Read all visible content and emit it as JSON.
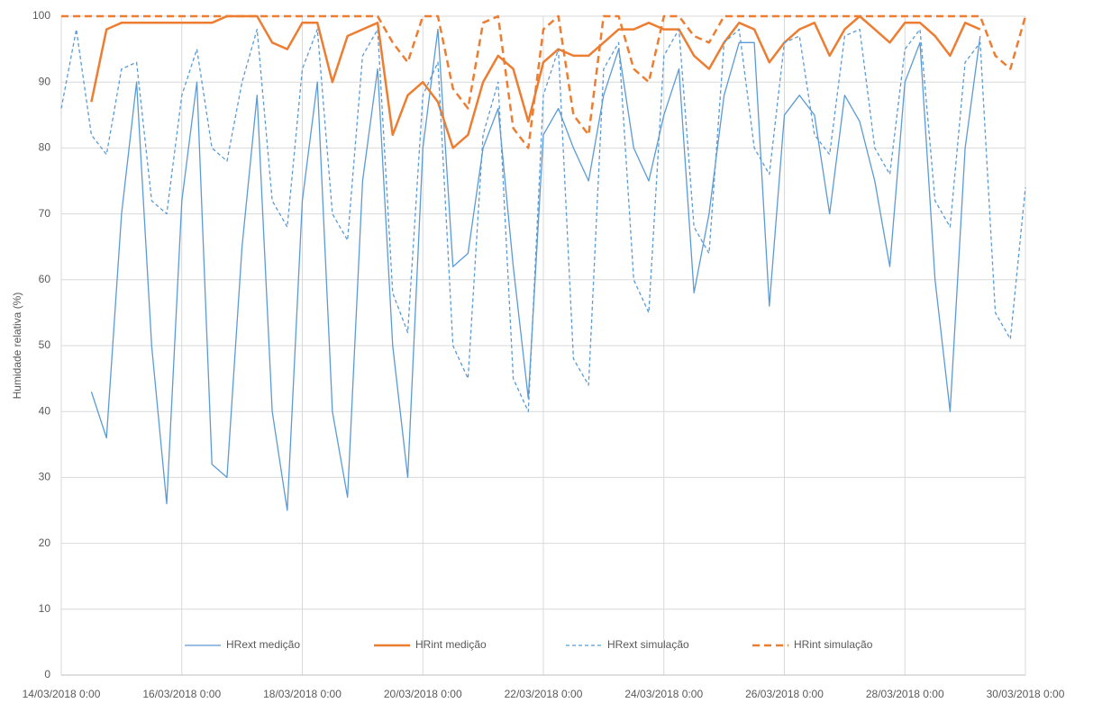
{
  "chart_data": {
    "type": "line",
    "y_label": "Humidade relativa (%)",
    "x": [
      "14/03/2018 0:00",
      "14/03/2018 6:00",
      "14/03/2018 12:00",
      "14/03/2018 18:00",
      "15/03/2018 0:00",
      "15/03/2018 6:00",
      "15/03/2018 12:00",
      "15/03/2018 18:00",
      "16/03/2018 0:00",
      "16/03/2018 6:00",
      "16/03/2018 12:00",
      "16/03/2018 18:00",
      "17/03/2018 0:00",
      "17/03/2018 6:00",
      "17/03/2018 12:00",
      "17/03/2018 18:00",
      "18/03/2018 0:00",
      "18/03/2018 6:00",
      "18/03/2018 12:00",
      "18/03/2018 18:00",
      "19/03/2018 0:00",
      "19/03/2018 6:00",
      "19/03/2018 12:00",
      "19/03/2018 18:00",
      "20/03/2018 0:00",
      "20/03/2018 6:00",
      "20/03/2018 12:00",
      "20/03/2018 18:00",
      "21/03/2018 0:00",
      "21/03/2018 6:00",
      "21/03/2018 12:00",
      "21/03/2018 18:00",
      "22/03/2018 0:00",
      "22/03/2018 6:00",
      "22/03/2018 12:00",
      "22/03/2018 18:00",
      "23/03/2018 0:00",
      "23/03/2018 6:00",
      "23/03/2018 12:00",
      "23/03/2018 18:00",
      "24/03/2018 0:00",
      "24/03/2018 6:00",
      "24/03/2018 12:00",
      "24/03/2018 18:00",
      "25/03/2018 0:00",
      "25/03/2018 6:00",
      "25/03/2018 12:00",
      "25/03/2018 18:00",
      "26/03/2018 0:00",
      "26/03/2018 6:00",
      "26/03/2018 12:00",
      "26/03/2018 18:00",
      "27/03/2018 0:00",
      "27/03/2018 6:00",
      "27/03/2018 12:00",
      "27/03/2018 18:00",
      "28/03/2018 0:00",
      "28/03/2018 6:00",
      "28/03/2018 12:00",
      "28/03/2018 18:00",
      "29/03/2018 0:00",
      "29/03/2018 6:00",
      "29/03/2018 12:00",
      "29/03/2018 18:00",
      "30/03/2018 0:00"
    ],
    "series": [
      {
        "name": "HRext medição",
        "color": "#5b9bd5",
        "linestyle": "solid",
        "width": 1.3,
        "values": [
          null,
          null,
          43,
          36,
          70,
          90,
          50,
          26,
          72,
          90,
          32,
          30,
          65,
          88,
          40,
          25,
          72,
          90,
          40,
          27,
          75,
          92,
          50,
          30,
          80,
          98,
          62,
          64,
          80,
          86,
          62,
          42,
          82,
          86,
          80,
          75,
          88,
          95,
          80,
          75,
          85,
          92,
          58,
          70,
          88,
          96,
          96,
          56,
          85,
          88,
          85,
          70,
          88,
          84,
          75,
          62,
          90,
          96,
          60,
          40,
          80,
          97,
          null,
          null,
          null
        ]
      },
      {
        "name": "HRint medição",
        "color": "#ed7d31",
        "linestyle": "solid",
        "width": 2.5,
        "values": [
          null,
          null,
          87,
          98,
          99,
          99,
          99,
          99,
          99,
          99,
          99,
          100,
          100,
          100,
          96,
          95,
          99,
          99,
          90,
          97,
          98,
          99,
          82,
          88,
          90,
          87,
          80,
          82,
          90,
          94,
          92,
          84,
          93,
          95,
          94,
          94,
          96,
          98,
          98,
          99,
          98,
          98,
          94,
          92,
          96,
          99,
          98,
          93,
          96,
          98,
          99,
          94,
          98,
          100,
          98,
          96,
          99,
          99,
          97,
          94,
          99,
          98,
          null,
          null,
          null
        ]
      },
      {
        "name": "HRext simulação",
        "color": "#5b9bd5",
        "linestyle": "dashed",
        "width": 1.3,
        "values": [
          86,
          98,
          82,
          79,
          92,
          93,
          72,
          70,
          88,
          95,
          80,
          78,
          90,
          98,
          72,
          68,
          92,
          98,
          70,
          66,
          94,
          98,
          58,
          52,
          88,
          93,
          50,
          45,
          82,
          90,
          45,
          40,
          88,
          95,
          48,
          44,
          92,
          96,
          60,
          55,
          94,
          98,
          68,
          64,
          96,
          98,
          80,
          76,
          96,
          97,
          82,
          79,
          97,
          98,
          80,
          76,
          95,
          98,
          72,
          68,
          93,
          96,
          55,
          51,
          74
        ]
      },
      {
        "name": "HRint simulação",
        "color": "#ed7d31",
        "linestyle": "dashed",
        "width": 2.5,
        "values": [
          100,
          100,
          100,
          100,
          100,
          100,
          100,
          100,
          100,
          100,
          100,
          100,
          100,
          100,
          100,
          100,
          100,
          100,
          100,
          100,
          100,
          100,
          96,
          93,
          100,
          100,
          89,
          86,
          99,
          100,
          83,
          80,
          98,
          100,
          85,
          82,
          100,
          100,
          92,
          90,
          100,
          100,
          97,
          96,
          100,
          100,
          100,
          100,
          100,
          100,
          100,
          100,
          100,
          100,
          100,
          100,
          100,
          100,
          100,
          100,
          100,
          100,
          94,
          92,
          100
        ]
      }
    ],
    "xlim": [
      "14/03/2018 0:00",
      "30/03/2018 0:00"
    ],
    "xticks": [
      "14/03/2018 0:00",
      "16/03/2018 0:00",
      "18/03/2018 0:00",
      "20/03/2018 0:00",
      "22/03/2018 0:00",
      "24/03/2018 0:00",
      "26/03/2018 0:00",
      "28/03/2018 0:00",
      "30/03/2018 0:00"
    ],
    "ylim": [
      0,
      100
    ],
    "yticks": [
      0,
      10,
      20,
      30,
      40,
      50,
      60,
      70,
      80,
      90,
      100
    ],
    "grid": true,
    "legend": "bottom"
  }
}
